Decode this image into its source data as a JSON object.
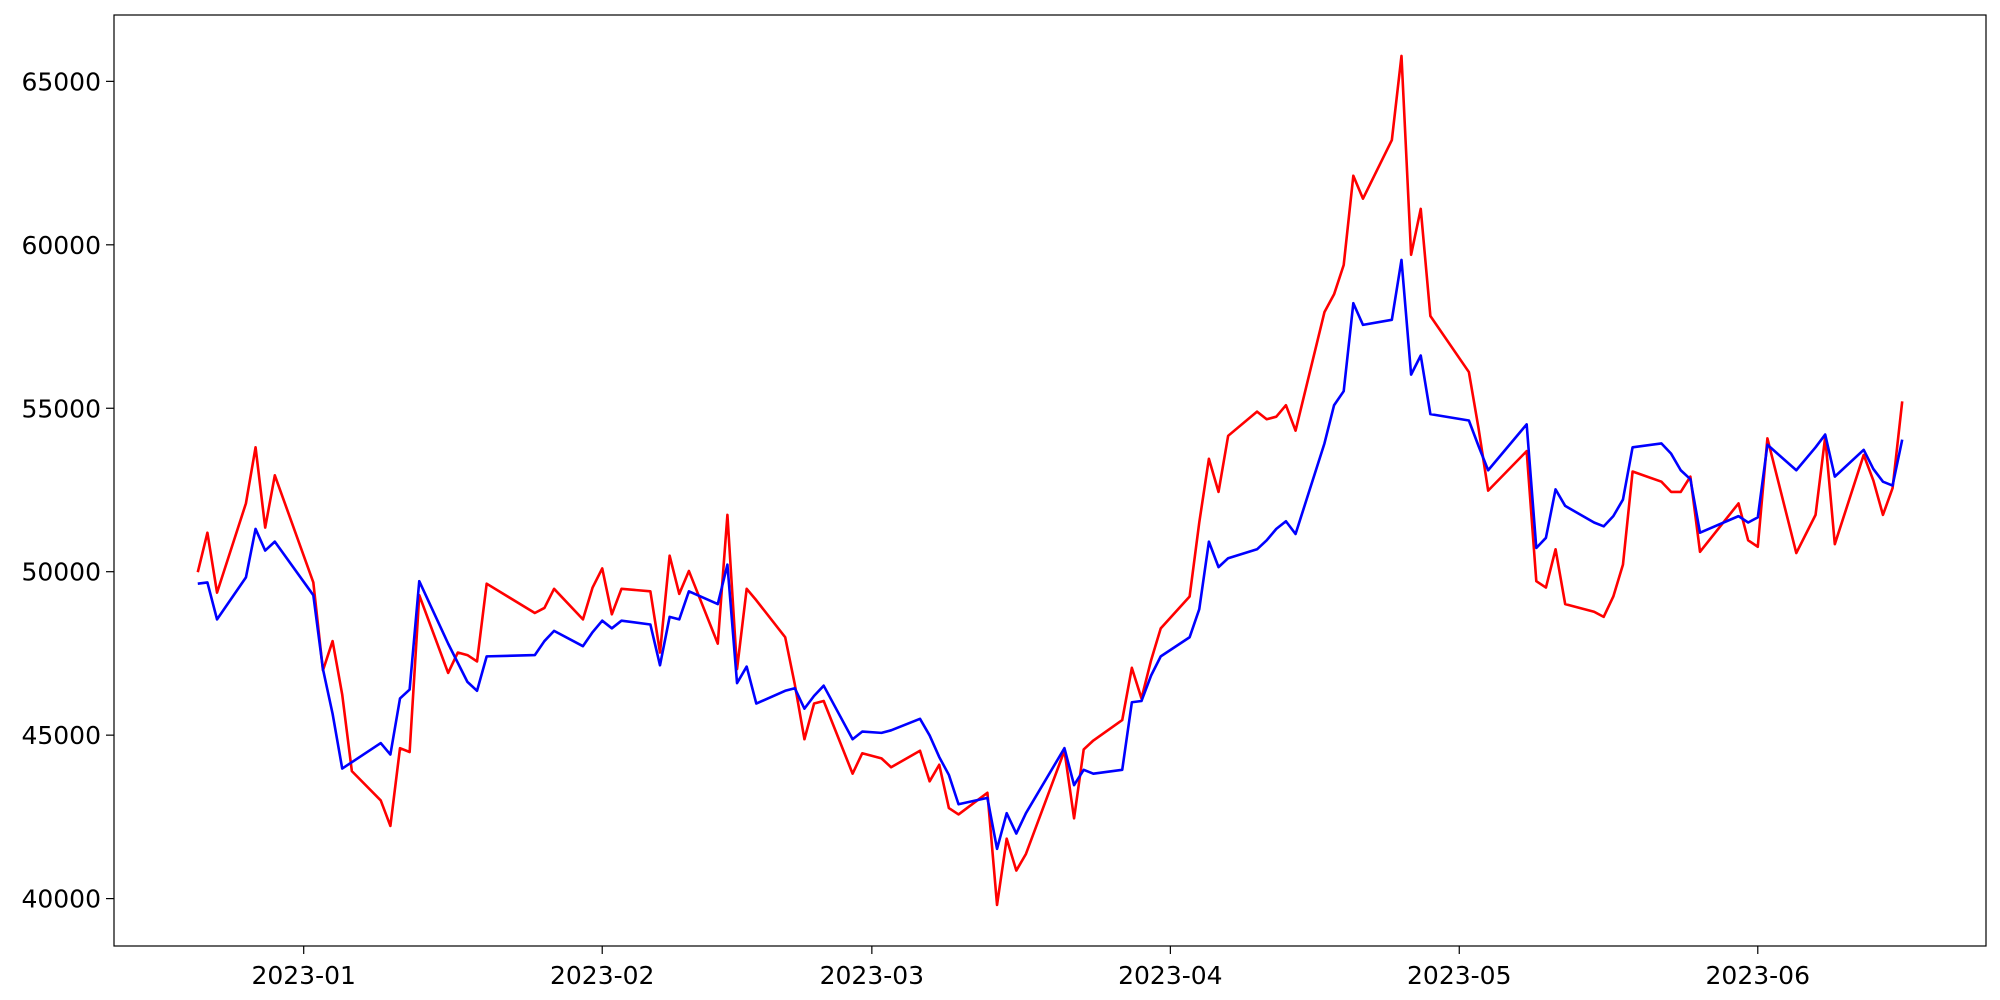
{
  "chart_data": {
    "type": "line",
    "x": [
      -11,
      -10,
      -9,
      -6,
      -5,
      -4,
      -3,
      1,
      2,
      3,
      4,
      5,
      8,
      9,
      10,
      11,
      12,
      15,
      16,
      17,
      18,
      19,
      24,
      25,
      26,
      29,
      30,
      31,
      32,
      33,
      36,
      37,
      38,
      39,
      40,
      43,
      44,
      45,
      46,
      47,
      50,
      51,
      52,
      53,
      54,
      57,
      58,
      60,
      61,
      64,
      65,
      66,
      67,
      68,
      71,
      72,
      73,
      74,
      75,
      79,
      80,
      81,
      82,
      85,
      86,
      87,
      88,
      89,
      92,
      93,
      94,
      95,
      96,
      99,
      100,
      101,
      102,
      103,
      106,
      107,
      108,
      109,
      110,
      113,
      114,
      115,
      116,
      117,
      121,
      122,
      123,
      127,
      128,
      129,
      130,
      131,
      134,
      135,
      136,
      137,
      138,
      141,
      142,
      143,
      144,
      145,
      149,
      150,
      151,
      152,
      155,
      157,
      158,
      159,
      162,
      163,
      164,
      165,
      166
    ],
    "series": [
      {
        "color": "#ff0000",
        "values": [
          49984,
          51193,
          49360,
          52090,
          53806,
          51349,
          52948,
          49672,
          46981,
          47878,
          46240,
          43900,
          43003,
          42223,
          44602,
          44485,
          49282,
          46903,
          47527,
          47449,
          47254,
          49633,
          48736,
          48892,
          49477,
          48541,
          49516,
          50101,
          48697,
          49477,
          49399,
          47527,
          50491,
          49321,
          50023,
          47800,
          51739,
          47020,
          49477,
          49126,
          47995,
          46552,
          44875,
          45967,
          46045,
          43822,
          44446,
          44290,
          44017,
          44524,
          43588,
          44095,
          42769,
          42574,
          43237,
          39805,
          41833,
          40858,
          41365,
          44524,
          42457,
          44563,
          44836,
          45460,
          47059,
          46123,
          47293,
          48268,
          49243,
          51505,
          53455,
          52441,
          54157,
          54898,
          54664,
          54742,
          55093,
          54313,
          57940,
          58486,
          59383,
          62113,
          61411,
          63205,
          65779,
          59695,
          61099,
          57823,
          56107,
          54391,
          52480,
          53689,
          49711,
          49516,
          50686,
          49009,
          48775,
          48619,
          49243,
          50218,
          53065,
          52753,
          52441,
          52441,
          52909,
          50608,
          52090,
          50959,
          50764,
          54079,
          50569,
          51739,
          54118,
          50842,
          53572,
          52792,
          51739,
          52558,
          55210
        ]
      },
      {
        "color": "#0000ff",
        "values": [
          49633,
          49672,
          48541,
          49828,
          51310,
          50647,
          50920,
          49282,
          47020,
          45655,
          43978,
          44173,
          44758,
          44407,
          46123,
          46396,
          49711,
          47800,
          47215,
          46630,
          46357,
          47410,
          47449,
          47878,
          48190,
          47722,
          48151,
          48502,
          48268,
          48502,
          48385,
          47137,
          48619,
          48541,
          49399,
          49009,
          50218,
          46591,
          47098,
          45967,
          46357,
          46435,
          45811,
          46201,
          46513,
          44875,
          45109,
          45070,
          45148,
          45499,
          44992,
          44329,
          43783,
          42886,
          43081,
          41521,
          42613,
          41989,
          42613,
          44602,
          43471,
          43939,
          43822,
          43939,
          46006,
          46045,
          46825,
          47410,
          47995,
          48853,
          50920,
          50140,
          50413,
          50686,
          50959,
          51310,
          51544,
          51154,
          53923,
          55093,
          55522,
          58213,
          57550,
          57706,
          59539,
          56029,
          56614,
          54820,
          54625,
          53845,
          53104,
          54508,
          50725,
          51037,
          52519,
          52012,
          51505,
          51388,
          51700,
          52207,
          53806,
          53923,
          53611,
          53104,
          52831,
          51193,
          51700,
          51505,
          51661,
          53884,
          53104,
          53806,
          54196,
          52909,
          53728,
          53143,
          52753,
          52636,
          54040
        ]
      }
    ],
    "xlim": [
      -19.7,
      174.7
    ],
    "xticks": [
      {
        "value": 0,
        "label": "2023-01"
      },
      {
        "value": 31,
        "label": "2023-02"
      },
      {
        "value": 59,
        "label": "2023-03"
      },
      {
        "value": 90,
        "label": "2023-04"
      },
      {
        "value": 120,
        "label": "2023-05"
      },
      {
        "value": 151,
        "label": "2023-06"
      }
    ],
    "ylim": [
      38550,
      67030
    ],
    "yticks": [
      40000,
      45000,
      50000,
      55000,
      60000,
      65000
    ],
    "grid": false
  }
}
